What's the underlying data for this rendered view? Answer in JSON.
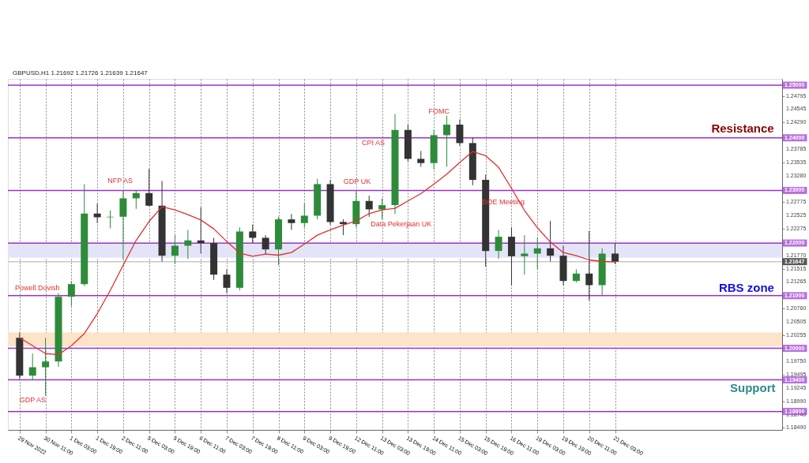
{
  "chart_data": {
    "type": "candlestick",
    "title": "GBPUSD,H1 1.21692 1.21726 1.21639 1.21647",
    "categories": [
      "29 Nov 2022",
      null,
      "30 Nov 11:00",
      null,
      "1 Dec 03:00",
      null,
      "1 Dec 19:00",
      null,
      "2 Dec 11:00",
      null,
      "5 Dec 03:00",
      null,
      "5 Dec 19:00",
      null,
      "6 Dec 11:00",
      null,
      "7 Dec 03:00",
      null,
      "7 Dec 19:00",
      null,
      "8 Dec 11:00",
      null,
      "9 Dec 03:00",
      null,
      "9 Dec 19:00",
      null,
      "12 Dec 11:00",
      null,
      "13 Dec 03:00",
      null,
      "13 Dec 19:00",
      null,
      "14 Dec 11:00",
      null,
      "15 Dec 03:00",
      null,
      "15 Dec 19:00",
      null,
      "16 Dec 11:00",
      null,
      "19 Dec 03:00",
      null,
      "19 Dec 19:00",
      null,
      "20 Dec 11:00",
      null,
      "21 Dec 03:00",
      null,
      null,
      null,
      null,
      null,
      null,
      null,
      null,
      null,
      null,
      null,
      null
    ],
    "ohlc": [
      [
        1.202,
        1.203,
        1.1942,
        1.1948
      ],
      [
        1.1948,
        1.199,
        1.194,
        1.1964
      ],
      [
        1.1964,
        1.202,
        1.191,
        1.1975
      ],
      [
        1.1975,
        1.2105,
        1.1965,
        1.2098
      ],
      [
        1.2098,
        1.2128,
        1.208,
        1.2122
      ],
      [
        1.2122,
        1.2312,
        1.2118,
        1.2256
      ],
      [
        1.2256,
        1.2275,
        1.2238,
        1.2249
      ],
      [
        1.2249,
        1.2262,
        1.2228,
        1.225
      ],
      [
        1.225,
        1.23,
        1.2169,
        1.2285
      ],
      [
        1.2285,
        1.23,
        1.2265,
        1.2295
      ],
      [
        1.2295,
        1.2341,
        1.227,
        1.2271
      ],
      [
        1.2271,
        1.2318,
        1.2165,
        1.2176
      ],
      [
        1.2176,
        1.2215,
        1.216,
        1.2195
      ],
      [
        1.2195,
        1.2225,
        1.217,
        1.2205
      ],
      [
        1.2205,
        1.2268,
        1.218,
        1.22
      ],
      [
        1.22,
        1.221,
        1.213,
        1.214
      ],
      [
        1.214,
        1.215,
        1.2105,
        1.2115
      ],
      [
        1.2115,
        1.223,
        1.211,
        1.2222
      ],
      [
        1.2222,
        1.2235,
        1.22,
        1.221
      ],
      [
        1.221,
        1.2215,
        1.2178,
        1.2188
      ],
      [
        1.2188,
        1.225,
        1.2158,
        1.2245
      ],
      [
        1.2245,
        1.2255,
        1.2225,
        1.2238
      ],
      [
        1.2238,
        1.2275,
        1.223,
        1.2252
      ],
      [
        1.2252,
        1.2322,
        1.2245,
        1.2312
      ],
      [
        1.2312,
        1.232,
        1.2235,
        1.224
      ],
      [
        1.224,
        1.2245,
        1.2215,
        1.2236
      ],
      [
        1.2236,
        1.23,
        1.223,
        1.228
      ],
      [
        1.228,
        1.229,
        1.225,
        1.2264
      ],
      [
        1.2264,
        1.2285,
        1.2245,
        1.2272
      ],
      [
        1.2272,
        1.2445,
        1.2255,
        1.2415
      ],
      [
        1.2415,
        1.2425,
        1.2355,
        1.236
      ],
      [
        1.236,
        1.2375,
        1.2345,
        1.2352
      ],
      [
        1.2352,
        1.2415,
        1.234,
        1.2405
      ],
      [
        1.2405,
        1.2442,
        1.2345,
        1.2425
      ],
      [
        1.2425,
        1.2435,
        1.2385,
        1.239
      ],
      [
        1.239,
        1.24,
        1.231,
        1.232
      ],
      [
        1.232,
        1.233,
        1.2155,
        1.2185
      ],
      [
        1.2185,
        1.2225,
        1.217,
        1.2212
      ],
      [
        1.2212,
        1.223,
        1.212,
        1.2175
      ],
      [
        1.2175,
        1.2215,
        1.214,
        1.218
      ],
      [
        1.218,
        1.221,
        1.215,
        1.219
      ],
      [
        1.219,
        1.2242,
        1.2165,
        1.2176
      ],
      [
        1.2176,
        1.2195,
        1.212,
        1.2128
      ],
      [
        1.2128,
        1.215,
        1.2125,
        1.2142
      ],
      [
        1.2142,
        1.2223,
        1.2091,
        1.212
      ],
      [
        1.212,
        1.219,
        1.21,
        1.218
      ],
      [
        1.218,
        1.22,
        1.216,
        1.21647
      ],
      null,
      null,
      null,
      null,
      null,
      null,
      null,
      null,
      null,
      null,
      null,
      null
    ],
    "series": [
      {
        "type": "line",
        "color": "#e03030",
        "values": [
          1.202,
          1.2005,
          1.199,
          1.1988,
          1.2005,
          1.2028,
          1.2066,
          1.211,
          1.2158,
          1.2205,
          1.2241,
          1.2269,
          1.2263,
          1.2254,
          1.2244,
          1.2227,
          1.2203,
          1.2181,
          1.2175,
          1.2179,
          1.2177,
          1.2182,
          1.2198,
          1.2215,
          1.2225,
          1.2234,
          1.2242,
          1.2256,
          1.2263,
          1.2266,
          1.228,
          1.2294,
          1.2312,
          1.2331,
          1.2353,
          1.2374,
          1.2366,
          1.2344,
          1.2304,
          1.2262,
          1.2229,
          1.2202,
          1.2182,
          1.2176,
          1.2168,
          1.2165,
          1.2164,
          null,
          null,
          null,
          null,
          null,
          null,
          null,
          null,
          null,
          null,
          null,
          null
        ]
      }
    ],
    "ylim": [
      1.1845,
      1.2512
    ],
    "yticks": [
      {
        "value": 1.24795,
        "label": "1.24795"
      },
      {
        "value": 1.24545,
        "label": "1.24545"
      },
      {
        "value": 1.2429,
        "label": "1.24290"
      },
      {
        "value": 1.23785,
        "label": "1.23785"
      },
      {
        "value": 1.23535,
        "label": "1.23535"
      },
      {
        "value": 1.2328,
        "label": "1.23280"
      },
      {
        "value": 1.22775,
        "label": "1.22775"
      },
      {
        "value": 1.22525,
        "label": "1.22525"
      },
      {
        "value": 1.22275,
        "label": "1.22275"
      },
      {
        "value": 1.2177,
        "label": "1.21770"
      },
      {
        "value": 1.21515,
        "label": "1.21515"
      },
      {
        "value": 1.21265,
        "label": "1.21265"
      },
      {
        "value": 1.2076,
        "label": "1.20760"
      },
      {
        "value": 1.20505,
        "label": "1.20505"
      },
      {
        "value": 1.20255,
        "label": "1.20255"
      },
      {
        "value": 1.1975,
        "label": "1.19750"
      },
      {
        "value": 1.19495,
        "label": "1.19495"
      },
      {
        "value": 1.19245,
        "label": "1.19245"
      },
      {
        "value": 1.1899,
        "label": "1.18990"
      },
      {
        "value": 1.1874,
        "label": "1.18740"
      },
      {
        "value": 1.1849,
        "label": "1.18490"
      }
    ],
    "ref_lines": [
      {
        "axis": "y",
        "value": 1.25,
        "label": "1.25000",
        "color": "#9933cc"
      },
      {
        "axis": "y",
        "value": 1.24,
        "label": "1.24000",
        "color": "#9933cc"
      },
      {
        "axis": "y",
        "value": 1.23,
        "label": "1.23000",
        "color": "#9933cc"
      },
      {
        "axis": "y",
        "value": 1.22,
        "label": "1.22000",
        "color": "#9933cc"
      },
      {
        "axis": "y",
        "value": 1.21,
        "label": "1.21000",
        "color": "#9933cc"
      },
      {
        "axis": "y",
        "value": 1.2,
        "label": "1.20000",
        "color": "#9933cc"
      },
      {
        "axis": "y",
        "value": 1.194,
        "label": "1.19400",
        "color": "#9933cc"
      },
      {
        "axis": "y",
        "value": 1.188,
        "label": "1.18800",
        "color": "#9933cc"
      },
      {
        "axis": "y",
        "value": 1.21647,
        "label": "1.21647",
        "color": "#c8c8c8"
      }
    ],
    "bands": [
      {
        "axis": "y",
        "from": 1.2172,
        "to": 1.22,
        "color": "#e4e4f8"
      },
      {
        "axis": "y",
        "from": 1.2004,
        "to": 1.203,
        "color": "#fde3c8"
      }
    ],
    "annotations": [
      "NFP AS",
      "Powell Dovish",
      "GDP AS",
      "GDP UK",
      "CPI AS",
      "FOMC",
      "Data Pekerjaan UK",
      "BOE Meeting",
      "Resistance",
      "RBS zone",
      "Support"
    ],
    "grid": "x"
  }
}
